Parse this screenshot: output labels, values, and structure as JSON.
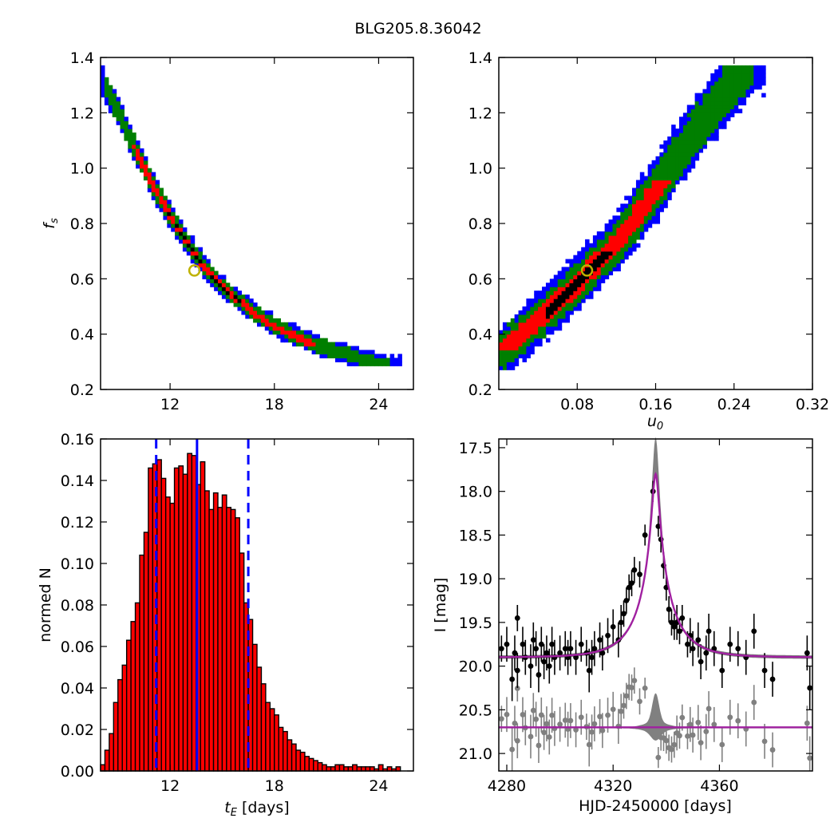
{
  "figure": {
    "title": "BLG205.8.36042"
  },
  "colors": {
    "blue": "#0000ff",
    "green": "#007f00",
    "red": "#ff0000",
    "black": "#000000",
    "gray": "#808080",
    "magenta": "#a020a0",
    "marker_edge": "#bfb200"
  },
  "chart_data": [
    {
      "id": "tE-fs",
      "type": "heatmap",
      "ylabel": "f_s",
      "xlabel": "",
      "xlim": [
        8,
        26
      ],
      "ylim": [
        0.2,
        1.4
      ],
      "xticks": [
        12,
        18,
        24
      ],
      "yticks": [
        0.2,
        0.4,
        0.6,
        0.8,
        1.0,
        1.2,
        1.4
      ],
      "relation": "fs_of_tE",
      "ridge": {
        "x": [
          8.0,
          9.0,
          10.0,
          11.0,
          12.0,
          13.0,
          14.0,
          15.0,
          16.0,
          17.0,
          18.0,
          19.0,
          20.0,
          21.0,
          22.0,
          23.0,
          24.0,
          25.0
        ],
        "y": [
          1.33,
          1.2,
          1.07,
          0.94,
          0.83,
          0.73,
          0.64,
          0.57,
          0.52,
          0.47,
          0.43,
          0.4,
          0.37,
          0.35,
          0.33,
          0.31,
          0.295,
          0.285
        ]
      },
      "cells": [
        {
          "level": 1,
          "xr": [
            8.0,
            25.3
          ],
          "yr": [
            0.28,
            1.37
          ]
        },
        {
          "level": 2,
          "xr": [
            8.2,
            24.6
          ],
          "yr": [
            0.28,
            1.37
          ]
        },
        {
          "level": 3,
          "xr": [
            9.4,
            20.3
          ],
          "yr": [
            0.36,
            1.08
          ]
        },
        {
          "level": 4,
          "xr": [
            11.4,
            16.1
          ],
          "yr": [
            0.46,
            0.85
          ]
        }
      ],
      "best_fit": {
        "x": 13.4,
        "y": 0.63
      }
    },
    {
      "id": "u0-fs",
      "type": "heatmap",
      "xlabel": "u_0",
      "ylabel": "",
      "xlim": [
        0.0,
        0.32
      ],
      "ylim": [
        0.2,
        1.4
      ],
      "xticks": [
        0.08,
        0.16,
        0.24,
        0.32
      ],
      "yticks": [
        0.2,
        0.4,
        0.6,
        0.8,
        1.0,
        1.2,
        1.4
      ],
      "relation": "fs_of_u0",
      "ridge": {
        "x": [
          0.0,
          0.04,
          0.08,
          0.12,
          0.16,
          0.2,
          0.24,
          0.26
        ],
        "y": [
          0.33,
          0.45,
          0.58,
          0.73,
          0.92,
          1.13,
          1.32,
          1.4
        ]
      },
      "cells": [
        {
          "level": 1,
          "xr": [
            0.0,
            0.27
          ],
          "yr": [
            0.27,
            1.37
          ]
        },
        {
          "level": 2,
          "xr": [
            0.0,
            0.26
          ],
          "yr": [
            0.27,
            1.37
          ]
        },
        {
          "level": 3,
          "xr": [
            0.0,
            0.19
          ],
          "yr": [
            0.34,
            0.95
          ]
        },
        {
          "level": 4,
          "xr": [
            0.048,
            0.115
          ],
          "yr": [
            0.45,
            0.7
          ]
        }
      ],
      "best_fit": {
        "x": 0.09,
        "y": 0.63
      }
    },
    {
      "id": "tE-hist",
      "type": "bar",
      "xlabel": "t_E  [days]",
      "ylabel": "normed N",
      "xlim": [
        8,
        26
      ],
      "ylim": [
        0.0,
        0.16
      ],
      "xticks": [
        12,
        18,
        24
      ],
      "yticks": [
        0.0,
        0.02,
        0.04,
        0.06,
        0.08,
        0.1,
        0.12,
        0.14,
        0.16
      ],
      "bin_start": 8.0,
      "bin_width": 0.25,
      "values": [
        0.003,
        0.01,
        0.018,
        0.033,
        0.044,
        0.051,
        0.063,
        0.072,
        0.081,
        0.104,
        0.115,
        0.146,
        0.148,
        0.15,
        0.141,
        0.132,
        0.129,
        0.146,
        0.147,
        0.143,
        0.153,
        0.152,
        0.138,
        0.149,
        0.135,
        0.126,
        0.134,
        0.127,
        0.133,
        0.127,
        0.126,
        0.122,
        0.105,
        0.081,
        0.073,
        0.061,
        0.05,
        0.042,
        0.033,
        0.03,
        0.027,
        0.021,
        0.019,
        0.015,
        0.013,
        0.01,
        0.009,
        0.007,
        0.006,
        0.005,
        0.004,
        0.003,
        0.002,
        0.002,
        0.003,
        0.003,
        0.002,
        0.002,
        0.003,
        0.002,
        0.002,
        0.002,
        0.002,
        0.001,
        0.003,
        0.001,
        0.002,
        0.001,
        0.002
      ],
      "vlines": [
        {
          "x": 11.2,
          "style": "dashed"
        },
        {
          "x": 13.55,
          "style": "solid"
        },
        {
          "x": 16.5,
          "style": "dashed"
        }
      ]
    },
    {
      "id": "lightcurve",
      "type": "scatter",
      "xlabel": "HJD-2450000 [days]",
      "ylabel": "I [mag]",
      "xlim": [
        4277,
        4395
      ],
      "ylim": [
        21.2,
        17.4
      ],
      "y_inverted": true,
      "xticks": [
        4280,
        4320,
        4360
      ],
      "yticks": [
        17.5,
        18.0,
        18.5,
        19.0,
        19.5,
        20.0,
        20.5,
        21.0
      ],
      "model": {
        "t0": 4336.0,
        "u0": 0.09,
        "tE": 13.5,
        "baseline": 19.9,
        "fs": 0.63,
        "model_peak": 17.8
      },
      "band_peak_bright": 17.4,
      "residual_offset": 20.7,
      "data_black": [
        {
          "x": 4278,
          "y": 19.8,
          "e": 0.15
        },
        {
          "x": 4280,
          "y": 19.75,
          "e": 0.2
        },
        {
          "x": 4282,
          "y": 20.15,
          "e": 0.25
        },
        {
          "x": 4283,
          "y": 19.85,
          "e": 0.2
        },
        {
          "x": 4284,
          "y": 19.45,
          "e": 0.15
        },
        {
          "x": 4284,
          "y": 20.05,
          "e": 0.2
        },
        {
          "x": 4286,
          "y": 19.75,
          "e": 0.2
        },
        {
          "x": 4287,
          "y": 19.9,
          "e": 0.2
        },
        {
          "x": 4289,
          "y": 20.0,
          "e": 0.25
        },
        {
          "x": 4290,
          "y": 19.7,
          "e": 0.2
        },
        {
          "x": 4291,
          "y": 19.8,
          "e": 0.2
        },
        {
          "x": 4292,
          "y": 20.1,
          "e": 0.2
        },
        {
          "x": 4293,
          "y": 19.75,
          "e": 0.2
        },
        {
          "x": 4294,
          "y": 19.95,
          "e": 0.2
        },
        {
          "x": 4295,
          "y": 19.85,
          "e": 0.2
        },
        {
          "x": 4296,
          "y": 20.0,
          "e": 0.2
        },
        {
          "x": 4297,
          "y": 19.75,
          "e": 0.2
        },
        {
          "x": 4298,
          "y": 19.9,
          "e": 0.2
        },
        {
          "x": 4300,
          "y": 19.85,
          "e": 0.2
        },
        {
          "x": 4302,
          "y": 19.8,
          "e": 0.2
        },
        {
          "x": 4303,
          "y": 19.9,
          "e": 0.2
        },
        {
          "x": 4304,
          "y": 19.8,
          "e": 0.2
        },
        {
          "x": 4306,
          "y": 19.9,
          "e": 0.2
        },
        {
          "x": 4308,
          "y": 19.75,
          "e": 0.2
        },
        {
          "x": 4310,
          "y": 19.85,
          "e": 0.15
        },
        {
          "x": 4311,
          "y": 20.05,
          "e": 0.25
        },
        {
          "x": 4312,
          "y": 19.9,
          "e": 0.2
        },
        {
          "x": 4313,
          "y": 19.8,
          "e": 0.2
        },
        {
          "x": 4315,
          "y": 19.7,
          "e": 0.2
        },
        {
          "x": 4316,
          "y": 19.85,
          "e": 0.2
        },
        {
          "x": 4318,
          "y": 19.65,
          "e": 0.2
        },
        {
          "x": 4320,
          "y": 19.55,
          "e": 0.2
        },
        {
          "x": 4322,
          "y": 19.7,
          "e": 0.2
        },
        {
          "x": 4323,
          "y": 19.5,
          "e": 0.2
        },
        {
          "x": 4324,
          "y": 19.4,
          "e": 0.15
        },
        {
          "x": 4325,
          "y": 19.25,
          "e": 0.15
        },
        {
          "x": 4326,
          "y": 19.1,
          "e": 0.15
        },
        {
          "x": 4327,
          "y": 19.05,
          "e": 0.15
        },
        {
          "x": 4328,
          "y": 18.9,
          "e": 0.15
        },
        {
          "x": 4330,
          "y": 18.95,
          "e": 0.15
        },
        {
          "x": 4332,
          "y": 18.5,
          "e": 0.12
        },
        {
          "x": 4335,
          "y": 18.0,
          "e": 0.12
        },
        {
          "x": 4337,
          "y": 18.4,
          "e": 0.12
        },
        {
          "x": 4338,
          "y": 18.55,
          "e": 0.15
        },
        {
          "x": 4339,
          "y": 18.85,
          "e": 0.15
        },
        {
          "x": 4340,
          "y": 19.1,
          "e": 0.15
        },
        {
          "x": 4341,
          "y": 19.35,
          "e": 0.15
        },
        {
          "x": 4342,
          "y": 19.5,
          "e": 0.15
        },
        {
          "x": 4343,
          "y": 19.55,
          "e": 0.15
        },
        {
          "x": 4344,
          "y": 19.5,
          "e": 0.2
        },
        {
          "x": 4345,
          "y": 19.6,
          "e": 0.15
        },
        {
          "x": 4346,
          "y": 19.45,
          "e": 0.15
        },
        {
          "x": 4348,
          "y": 19.75,
          "e": 0.15
        },
        {
          "x": 4349,
          "y": 19.65,
          "e": 0.2
        },
        {
          "x": 4350,
          "y": 19.8,
          "e": 0.2
        },
        {
          "x": 4352,
          "y": 19.7,
          "e": 0.2
        },
        {
          "x": 4353,
          "y": 19.95,
          "e": 0.2
        },
        {
          "x": 4355,
          "y": 19.85,
          "e": 0.2
        },
        {
          "x": 4356,
          "y": 19.6,
          "e": 0.2
        },
        {
          "x": 4358,
          "y": 19.8,
          "e": 0.2
        },
        {
          "x": 4361,
          "y": 20.05,
          "e": 0.2
        },
        {
          "x": 4364,
          "y": 19.75,
          "e": 0.2
        },
        {
          "x": 4367,
          "y": 19.8,
          "e": 0.2
        },
        {
          "x": 4370,
          "y": 19.9,
          "e": 0.2
        },
        {
          "x": 4373,
          "y": 19.6,
          "e": 0.2
        },
        {
          "x": 4377,
          "y": 20.05,
          "e": 0.2
        },
        {
          "x": 4380,
          "y": 20.15,
          "e": 0.2
        },
        {
          "x": 4393,
          "y": 19.85,
          "e": 0.2
        },
        {
          "x": 4394,
          "y": 20.25,
          "e": 0.25
        }
      ]
    }
  ]
}
